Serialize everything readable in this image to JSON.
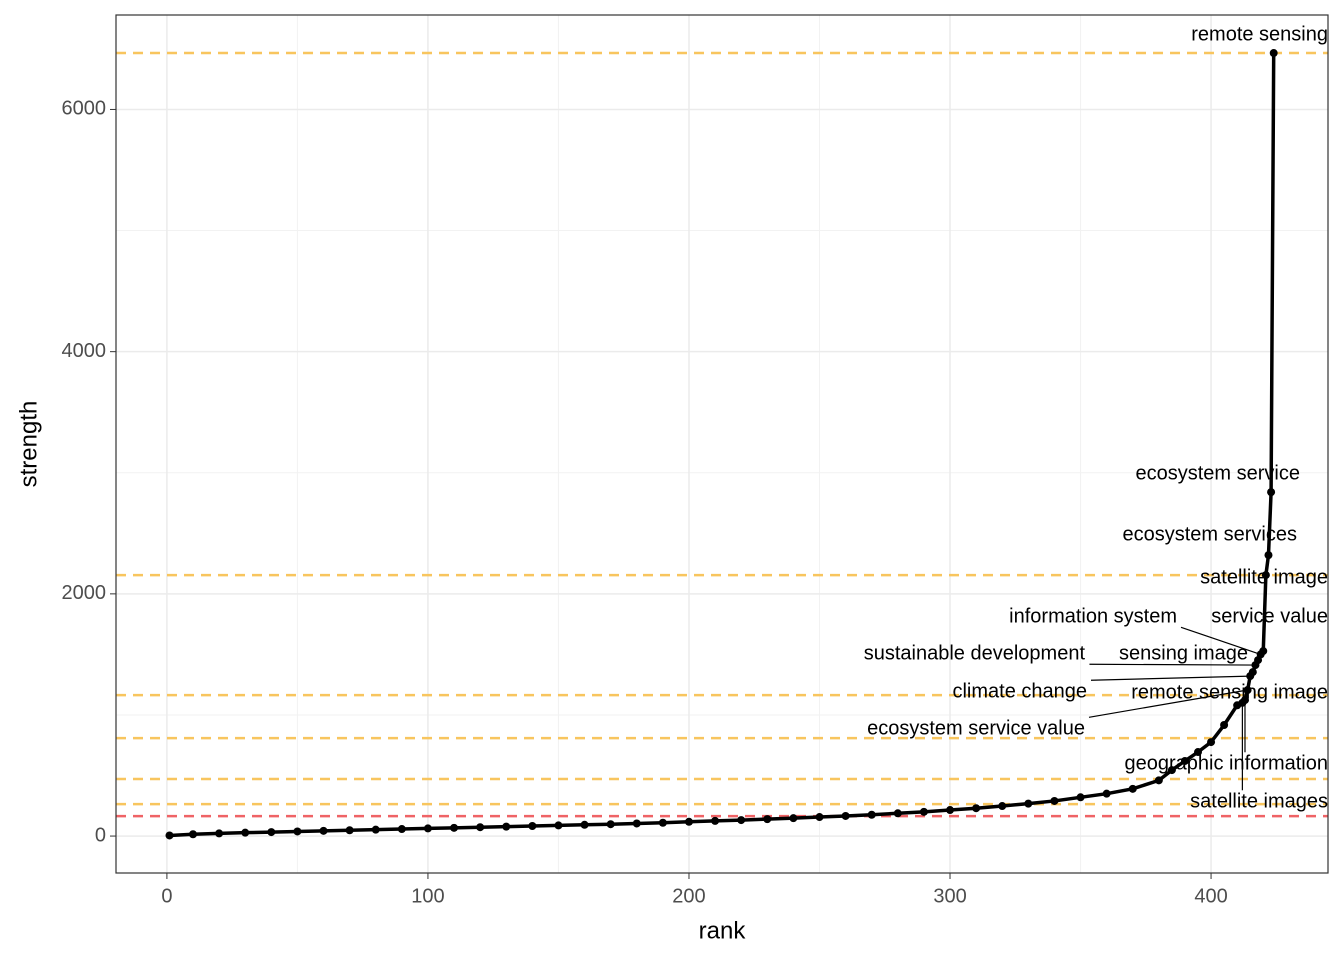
{
  "chart_data": {
    "type": "line",
    "x_label": "rank",
    "y_label": "strength",
    "xlim": [
      -19.5,
      444.8
    ],
    "ylim": [
      -305,
      6780
    ],
    "xticks": [
      0,
      100,
      200,
      300,
      400
    ],
    "yticks": [
      0,
      2000,
      4000,
      6000
    ],
    "grid": true,
    "color": "#000000",
    "x": [
      1,
      10,
      20,
      30,
      40,
      50,
      60,
      70,
      80,
      90,
      100,
      110,
      120,
      130,
      140,
      150,
      160,
      170,
      180,
      190,
      200,
      210,
      220,
      230,
      240,
      250,
      260,
      270,
      280,
      290,
      300,
      310,
      320,
      330,
      340,
      350,
      360,
      370,
      380,
      385,
      390,
      395,
      400,
      405,
      410,
      412,
      413,
      414,
      415,
      416,
      417,
      418,
      419,
      420,
      421,
      422,
      423,
      424
    ],
    "values": [
      5,
      15,
      22,
      28,
      33,
      38,
      43,
      48,
      53,
      58,
      63,
      68,
      73,
      78,
      83,
      88,
      93,
      98,
      104,
      110,
      118,
      125,
      132,
      140,
      148,
      157,
      166,
      176,
      188,
      200,
      215,
      230,
      248,
      268,
      290,
      320,
      350,
      390,
      460,
      545,
      620,
      694,
      776,
      917,
      1080,
      1100,
      1123,
      1206,
      1321,
      1354,
      1412,
      1453,
      1500,
      1528,
      2155,
      2320,
      2840,
      6466
    ],
    "point_labels": [
      null,
      null,
      null,
      null,
      null,
      null,
      null,
      null,
      null,
      null,
      null,
      null,
      null,
      null,
      null,
      null,
      null,
      null,
      null,
      null,
      null,
      null,
      null,
      null,
      null,
      null,
      null,
      null,
      null,
      null,
      null,
      null,
      null,
      null,
      null,
      null,
      null,
      null,
      null,
      null,
      null,
      null,
      null,
      null,
      null,
      "satellite images",
      "geographic information",
      "ecosystem service value",
      "climate change",
      "remote sensing image",
      "sustainable development",
      "sensing image",
      "information system",
      "service value",
      "satellite image",
      "ecosystem services",
      "ecosystem service",
      "remote sensing"
    ],
    "hlines": [
      6466,
      2155,
      1164,
      809,
      471,
      264,
      165
    ],
    "hline_colors": [
      "#f8c55e",
      "#f8c55e",
      "#f8c55e",
      "#f8c55e",
      "#f8c55e",
      "#f8c55e",
      "#ef6366"
    ]
  }
}
